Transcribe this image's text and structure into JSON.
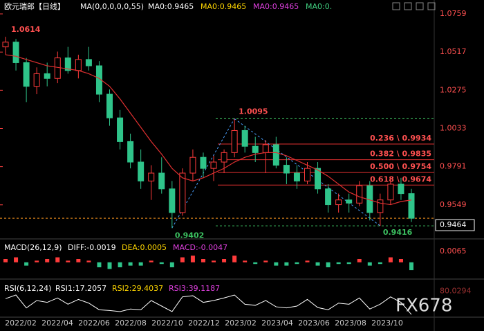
{
  "chart_data": {
    "type": "candlestick",
    "title": "欧元瑞郎【日线】",
    "indicator": "MA(0,0,0,0,0,55)",
    "ma_labels": [
      {
        "text": "MA0:0.9465",
        "color": "#ffffff"
      },
      {
        "text": "MA0:0.9465",
        "color": "#ffd700"
      },
      {
        "text": "MA0:0.9465",
        "color": "#e040e0"
      },
      {
        "text": "MA0:0.",
        "color": "#40d080"
      }
    ],
    "x": [
      "2022/02",
      "2022/04",
      "2022/06",
      "2022/08",
      "2022/10",
      "2022/12",
      "2023/02",
      "2023/04",
      "2023/06",
      "2023/08",
      "2023/10"
    ],
    "up_color": "#ff3b3b",
    "down_color": "#2fc48a",
    "ma_color": "#e03030",
    "candles": [
      [
        1.055,
        1.0614,
        1.05,
        1.058
      ],
      [
        1.058,
        1.06,
        1.04,
        1.045
      ],
      [
        1.045,
        1.048,
        1.02,
        1.03
      ],
      [
        1.03,
        1.042,
        1.025,
        1.038
      ],
      [
        1.038,
        1.045,
        1.03,
        1.035
      ],
      [
        1.035,
        1.052,
        1.032,
        1.048
      ],
      [
        1.048,
        1.055,
        1.038,
        1.04
      ],
      [
        1.04,
        1.05,
        1.035,
        1.047
      ],
      [
        1.047,
        1.055,
        1.04,
        1.043
      ],
      [
        1.043,
        1.046,
        1.02,
        1.025
      ],
      [
        1.025,
        1.028,
        1.005,
        1.01
      ],
      [
        1.01,
        1.015,
        0.99,
        0.995
      ],
      [
        0.995,
        1.0,
        0.978,
        0.982
      ],
      [
        0.982,
        0.99,
        0.965,
        0.97
      ],
      [
        0.97,
        0.98,
        0.958,
        0.975
      ],
      [
        0.975,
        0.985,
        0.962,
        0.965
      ],
      [
        0.965,
        0.97,
        0.9402,
        0.95
      ],
      [
        0.95,
        0.978,
        0.948,
        0.975
      ],
      [
        0.975,
        0.99,
        0.97,
        0.985
      ],
      [
        0.985,
        0.988,
        0.972,
        0.978
      ],
      [
        0.978,
        0.986,
        0.97,
        0.982
      ],
      [
        0.982,
        0.99,
        0.975,
        0.988
      ],
      [
        0.988,
        1.0095,
        0.985,
        1.002
      ],
      [
        1.002,
        1.005,
        0.988,
        0.992
      ],
      [
        0.992,
        0.998,
        0.982,
        0.988
      ],
      [
        0.988,
        0.996,
        0.975,
        0.993
      ],
      [
        0.993,
        0.998,
        0.978,
        0.98
      ],
      [
        0.98,
        0.985,
        0.968,
        0.975
      ],
      [
        0.975,
        0.98,
        0.965,
        0.97
      ],
      [
        0.97,
        0.982,
        0.968,
        0.978
      ],
      [
        0.978,
        0.982,
        0.962,
        0.965
      ],
      [
        0.965,
        0.968,
        0.95,
        0.955
      ],
      [
        0.955,
        0.962,
        0.95,
        0.958
      ],
      [
        0.958,
        0.962,
        0.95,
        0.956
      ],
      [
        0.956,
        0.97,
        0.954,
        0.967
      ],
      [
        0.967,
        0.97,
        0.945,
        0.95
      ],
      [
        0.95,
        0.962,
        0.9416,
        0.958
      ],
      [
        0.958,
        0.972,
        0.955,
        0.968
      ],
      [
        0.968,
        0.972,
        0.958,
        0.962
      ],
      [
        0.962,
        0.965,
        0.944,
        0.9464
      ]
    ],
    "ma": [
      1.05,
      1.049,
      1.047,
      1.045,
      1.043,
      1.042,
      1.041,
      1.04,
      1.038,
      1.035,
      1.03,
      1.022,
      1.013,
      1.004,
      0.995,
      0.987,
      0.978,
      0.972,
      0.97,
      0.972,
      0.975,
      0.978,
      0.982,
      0.985,
      0.987,
      0.988,
      0.988,
      0.986,
      0.983,
      0.98,
      0.977,
      0.973,
      0.968,
      0.963,
      0.96,
      0.958,
      0.956,
      0.955,
      0.957,
      0.958
    ],
    "ylim": [
      0.9355,
      1.0825
    ],
    "yticks": [
      1.0759,
      1.0517,
      1.0275,
      1.0033,
      0.9791,
      0.9549
    ],
    "extremes": [
      1.0614,
      1.0095,
      0.9402,
      0.9416
    ],
    "fib_levels": [
      {
        "value": 0.9934,
        "label": "0.236 \\ 0.9934"
      },
      {
        "value": 0.9835,
        "label": "0.382 \\ 0.9835"
      },
      {
        "value": 0.9754,
        "label": "0.500 \\ 0.9754"
      },
      {
        "value": 0.9674,
        "label": "0.618 \\ 0.9674"
      }
    ],
    "last_price": 0.9464,
    "macd": {
      "title": "MACD(26,12,9)",
      "diff": "DIFF:-0.0019",
      "dea": "DEA:0.0005",
      "macd": "MACD:-0.0047",
      "values": [
        0.002,
        0.003,
        -0.002,
        0.001,
        0.002,
        0.003,
        0.001,
        0.002,
        0.001,
        -0.003,
        -0.004,
        -0.003,
        -0.002,
        -0.002,
        0.001,
        -0.001,
        -0.003,
        0.003,
        0.004,
        0.002,
        0.001,
        0.002,
        0.004,
        0.001,
        -0.001,
        0.001,
        -0.002,
        -0.002,
        -0.001,
        0.001,
        -0.002,
        -0.003,
        -0.001,
        -0.001,
        0.002,
        -0.002,
        -0.001,
        0.003,
        0.002,
        -0.0047
      ],
      "ylim": [
        -0.008,
        0.012
      ],
      "yticks": [
        0.0065
      ]
    },
    "rsi": {
      "title": "RSI(6,12,24)",
      "rsi1": "RSI1:17.2057",
      "rsi2": "RSI2:29.4037",
      "rsi3": "RSI3:39.1187",
      "values": [
        60,
        70,
        35,
        55,
        50,
        62,
        45,
        58,
        48,
        30,
        28,
        25,
        32,
        30,
        55,
        40,
        25,
        65,
        68,
        50,
        55,
        62,
        70,
        45,
        42,
        55,
        38,
        35,
        40,
        58,
        36,
        30,
        48,
        45,
        62,
        32,
        45,
        65,
        50,
        17.2057
      ],
      "ylim": [
        10,
        100
      ],
      "yticks": [
        80.0294
      ]
    },
    "watermark": "FX678"
  }
}
